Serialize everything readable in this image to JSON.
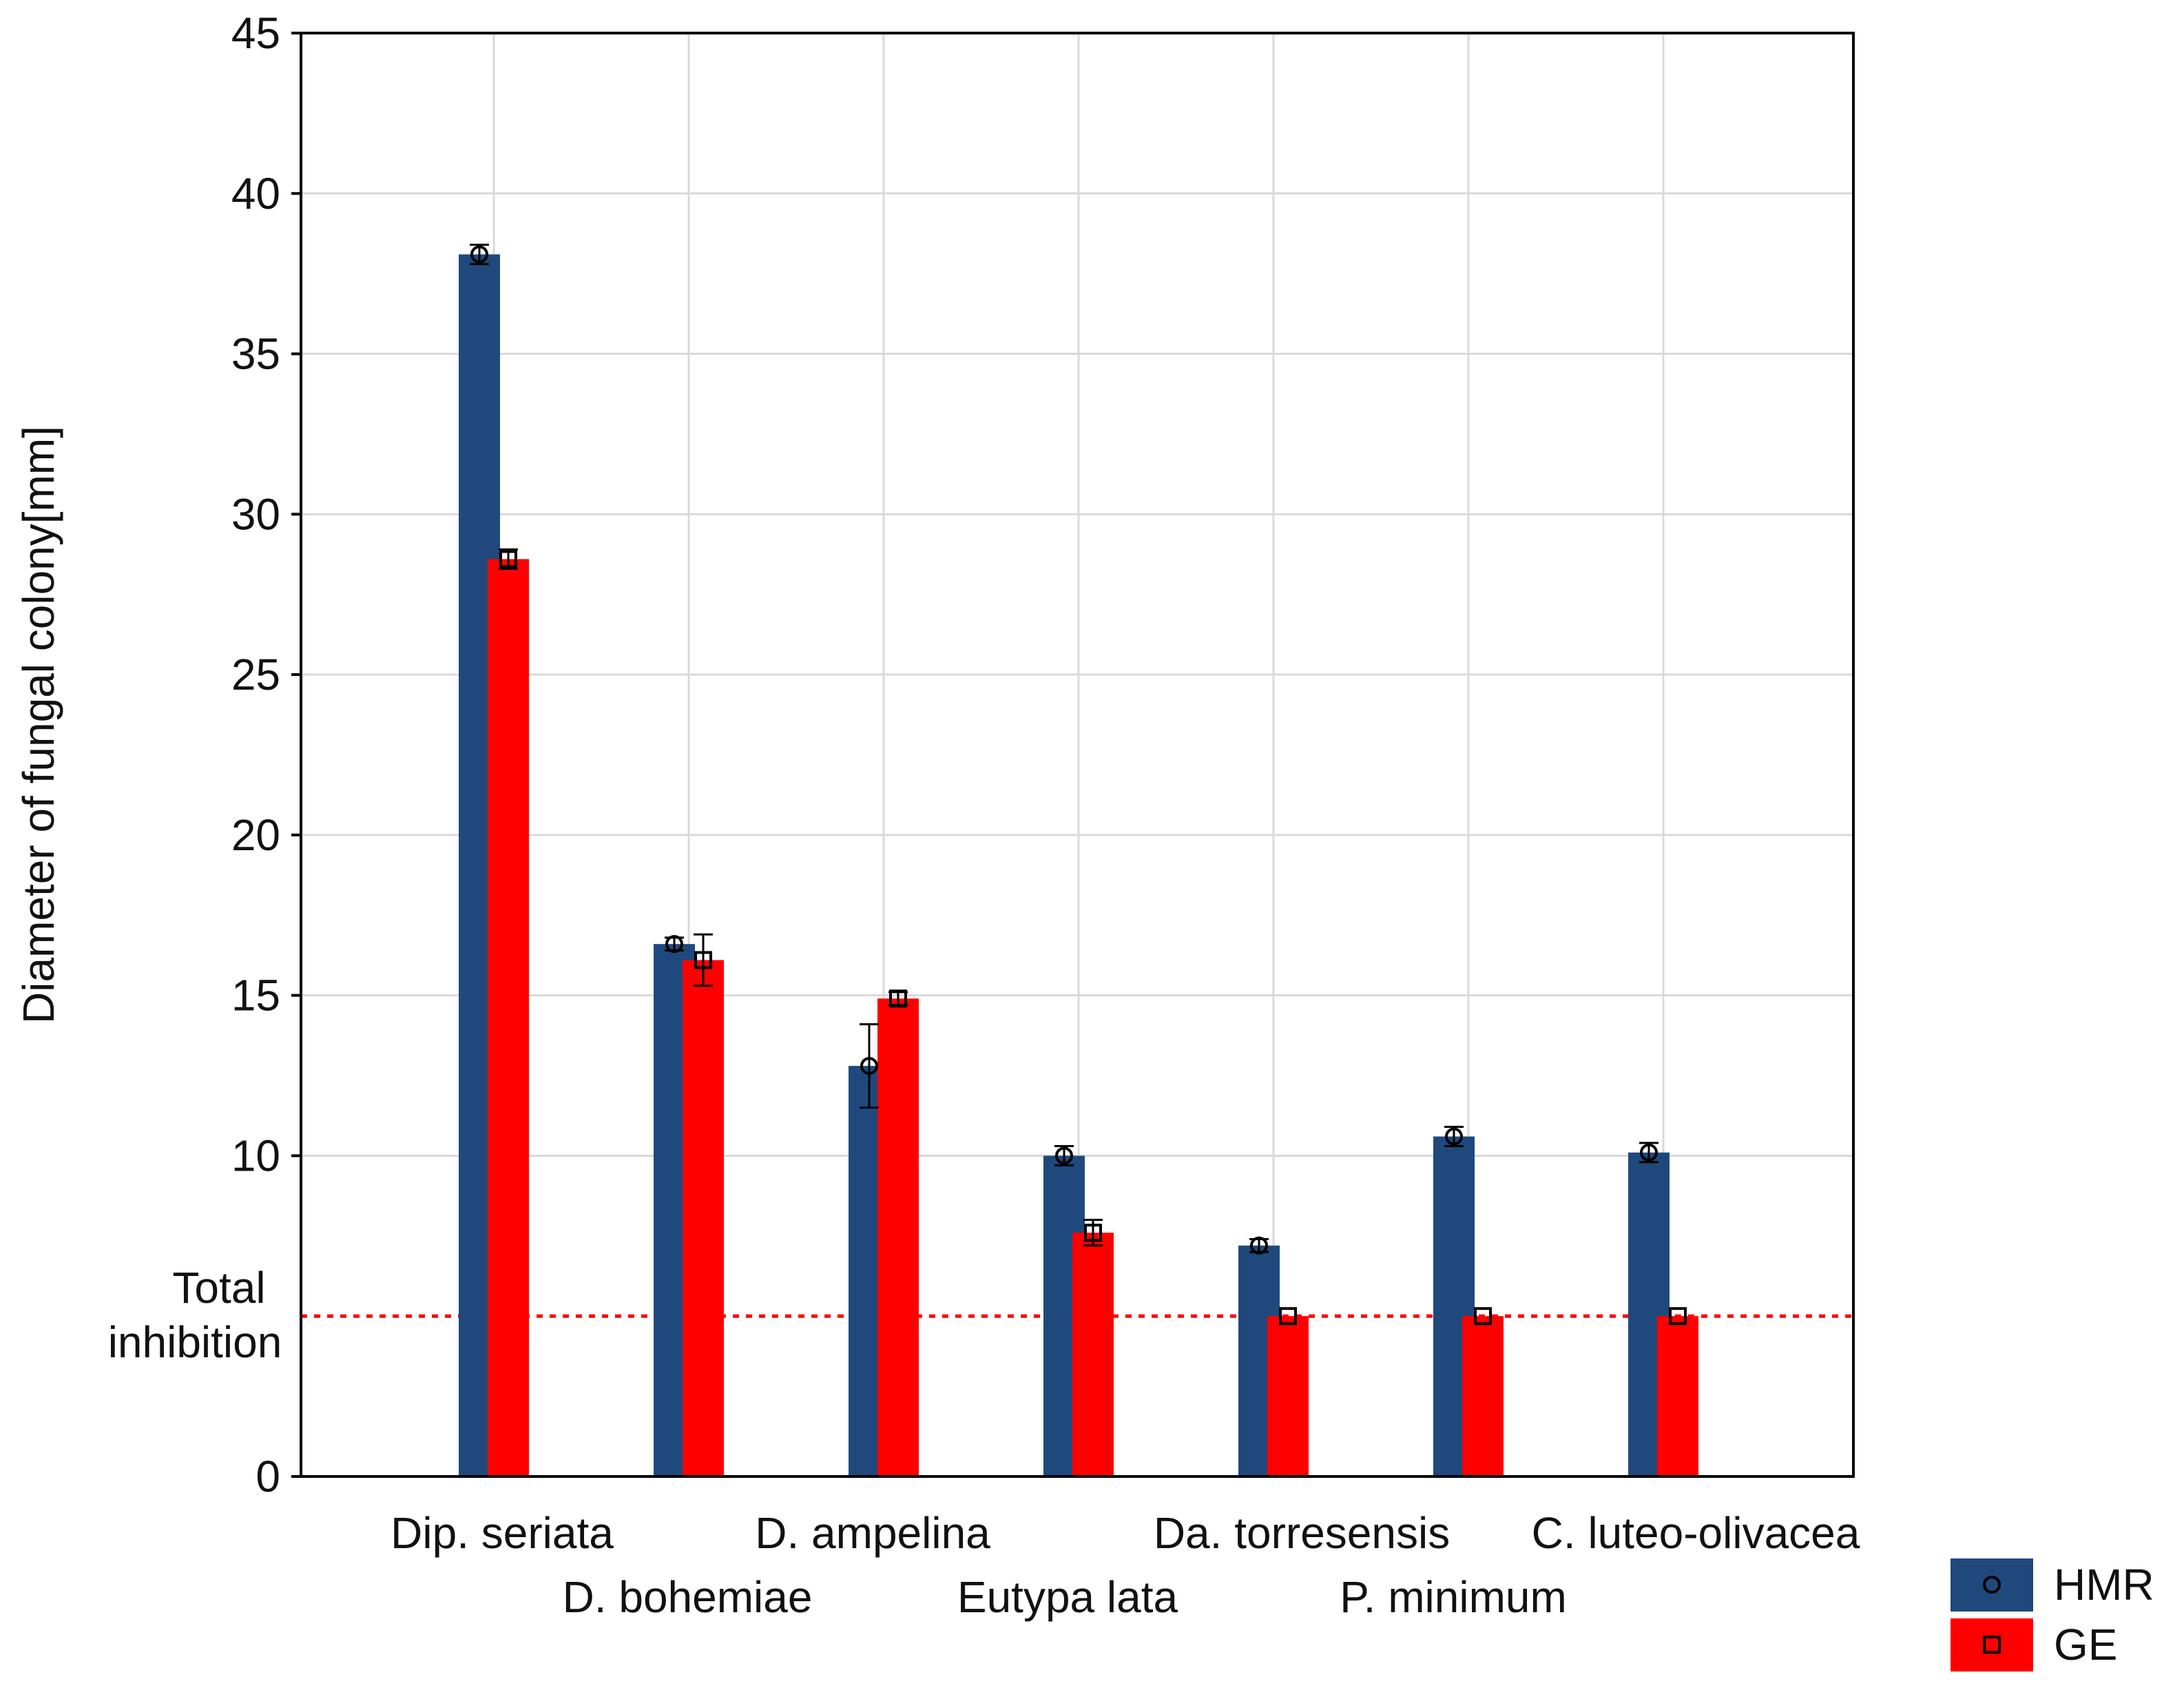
{
  "chart_data": {
    "type": "bar",
    "title": "",
    "xlabel": "",
    "ylabel": "Diameter of fungal colony[mm]",
    "ylim": [
      0,
      45
    ],
    "yticks": [
      0,
      10,
      15,
      20,
      25,
      30,
      35,
      40,
      45
    ],
    "grid": true,
    "categories": [
      "Dip. seriata",
      "D. bohemiae",
      "D. ampelina",
      "Eutypa lata",
      "Da. torresensis",
      "P. minimum",
      "C. luteo-olivacea"
    ],
    "series": [
      {
        "name": "HMR",
        "color": "#1f497d",
        "marker": "circle",
        "values": [
          38.1,
          16.6,
          12.8,
          10.0,
          7.2,
          10.6,
          10.1
        ],
        "errors": [
          0.3,
          0.2,
          1.3,
          0.3,
          0.2,
          0.3,
          0.3
        ]
      },
      {
        "name": "GE",
        "color": "#ff0000",
        "marker": "square",
        "values": [
          28.6,
          16.1,
          14.9,
          7.6,
          5.0,
          5.0,
          5.0
        ],
        "errors": [
          0.3,
          0.8,
          0.2,
          0.4,
          0.0,
          0.0,
          0.0
        ]
      }
    ],
    "reference_line": {
      "value": 5,
      "label_line1": "Total",
      "label_line2": "inhibition",
      "color": "#ff0000"
    },
    "legend": {
      "position": "bottom-right",
      "entries": [
        "HMR",
        "GE"
      ]
    }
  }
}
